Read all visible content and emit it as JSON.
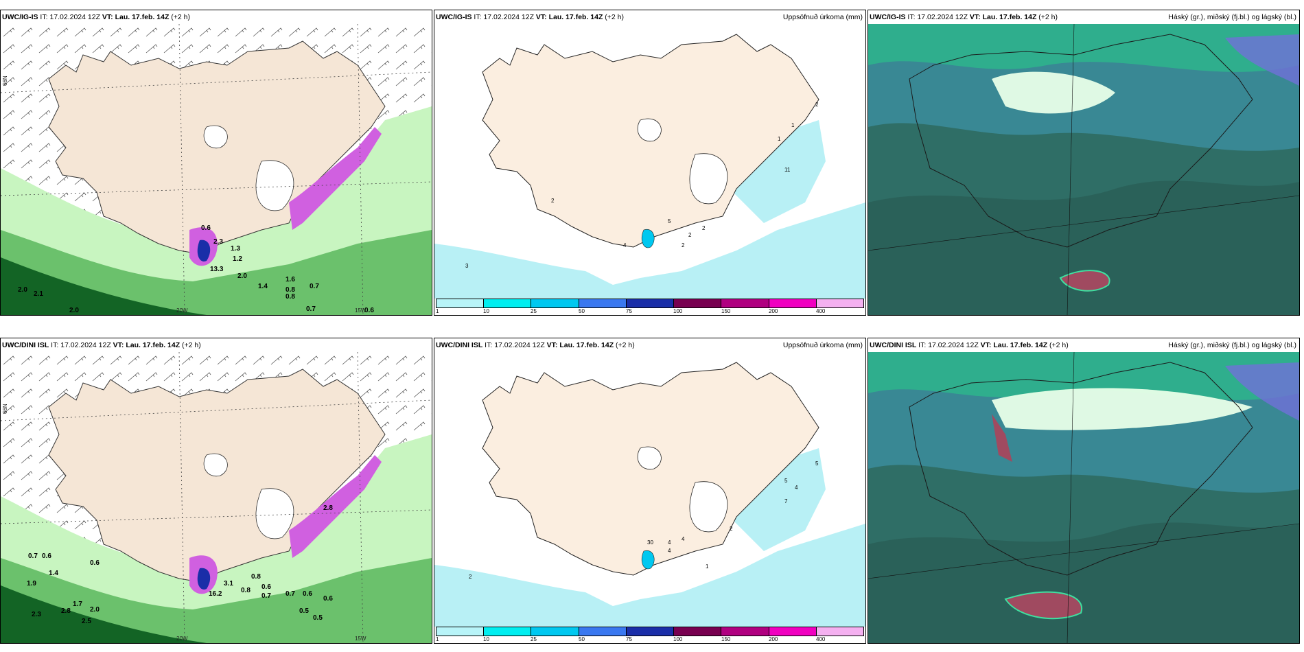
{
  "panels": [
    {
      "id": "p1",
      "model": "UWC/IG-IS",
      "it_label": "IT:",
      "it_value": "17.02.2024 12Z",
      "vt_label": "VT:",
      "vt_value": "Lau. 17.feb. 14Z",
      "lead": "(+2 h)",
      "right_title": "",
      "lat_label": "66N",
      "lon_labels": [
        "20W",
        "15W"
      ],
      "values": [
        "0.6",
        "2.3",
        "1.3",
        "1.2",
        "13.3",
        "2.0",
        "1.6",
        "0.7",
        "0.8",
        "0.8",
        "0.7",
        "0.6",
        "2.0",
        "2.1",
        "2.0",
        "1.4"
      ]
    },
    {
      "id": "p2",
      "model": "UWC/IG-IS",
      "it_label": "IT:",
      "it_value": "17.02.2024 12Z",
      "vt_label": "VT:",
      "vt_value": "Lau. 17.feb. 14Z",
      "lead": "(+2 h)",
      "right_title": "Uppsöfnuð úrkoma (mm)",
      "colorbar_ticks": [
        "1",
        "10",
        "25",
        "50",
        "75",
        "100",
        "150",
        "200",
        "400"
      ],
      "values": [
        "2",
        "1",
        "11",
        "2",
        "5",
        "2",
        "2",
        "4",
        "2",
        "3",
        "1"
      ]
    },
    {
      "id": "p3",
      "model": "UWC/IG-IS",
      "it_label": "IT:",
      "it_value": "17.02.2024 12Z",
      "vt_label": "VT:",
      "vt_value": "Lau. 17.feb. 14Z",
      "lead": "(+2 h)",
      "right_title": "Háský (gr.), miðský (fj.bl.) og lágský (bl.)"
    },
    {
      "id": "p4",
      "model": "UWC/DINI ISL",
      "it_label": "IT:",
      "it_value": "17.02.2024 12Z",
      "vt_label": "VT:",
      "vt_value": "Lau. 17.feb. 14Z",
      "lead": "(+2 h)",
      "right_title": "",
      "lat_label": "66N",
      "lon_labels": [
        "20W",
        "15W"
      ],
      "values": [
        "0.7",
        "0.6",
        "0.6",
        "1.4",
        "1.9",
        "1.7",
        "2.0",
        "2.8",
        "2.3",
        "2.5",
        "16.2",
        "3.1",
        "0.8",
        "0.8",
        "0.6",
        "0.7",
        "0.7",
        "0.6",
        "0.6",
        "0.5",
        "0.5",
        "2.8"
      ]
    },
    {
      "id": "p5",
      "model": "UWC/DINI ISL",
      "it_label": "IT:",
      "it_value": "17.02.2024 12Z",
      "vt_label": "VT:",
      "vt_value": "Lau. 17.feb. 14Z",
      "lead": "(+2 h)",
      "right_title": "Uppsöfnuð úrkoma (mm)",
      "colorbar_ticks": [
        "1",
        "10",
        "25",
        "50",
        "75",
        "100",
        "150",
        "200",
        "400"
      ],
      "values": [
        "2",
        "30",
        "4",
        "4",
        "4",
        "1",
        "2",
        "5",
        "7",
        "4",
        "5"
      ]
    },
    {
      "id": "p6",
      "model": "UWC/DINI ISL",
      "it_label": "IT:",
      "it_value": "17.02.2024 12Z",
      "vt_label": "VT:",
      "vt_value": "Lau. 17.feb. 14Z",
      "lead": "(+2 h)",
      "right_title": "Háský (gr.), miðský (fj.bl.) og lágský (bl.)"
    }
  ],
  "colors": {
    "land": "#f5e6d6",
    "precip_light": "#b8f0f5",
    "colorbar": [
      "#b8f4f8",
      "#00eef0",
      "#00c8f0",
      "#3a78f0",
      "#1a2ea8",
      "#780050",
      "#b00080",
      "#f000c0",
      "#f4b0f0"
    ],
    "cloud_low": "#2f6e66",
    "cloud_mid": "#3c8fa0",
    "cloud_high": "#e8ffe8",
    "green_dark": "#0a5a1e",
    "green_mid": "#4caf50",
    "green_light": "#c8f5c0",
    "magenta": "#d060e0"
  }
}
